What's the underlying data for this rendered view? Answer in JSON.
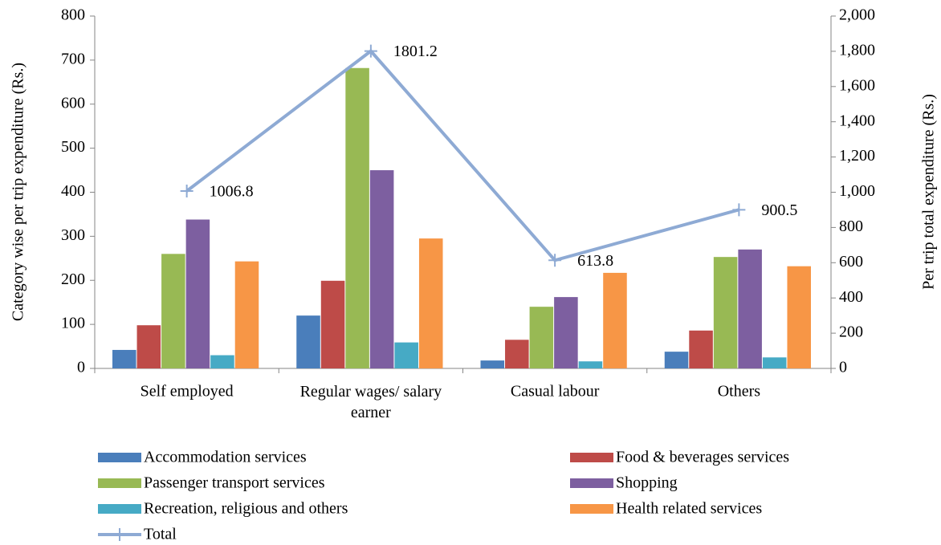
{
  "chart_data": {
    "type": "bar",
    "categories": [
      "Self employed",
      "Regular wages/ salary earner",
      "Casual labour",
      "Others"
    ],
    "ylabel": "Category wise per trip expenditure (Rs.)",
    "y2label": "Per trip total expenditure (Rs.)",
    "ylim": [
      0,
      800
    ],
    "yticks": [
      0,
      100,
      200,
      300,
      400,
      500,
      600,
      700,
      800
    ],
    "y2lim": [
      0,
      2000
    ],
    "y2ticks": [
      0,
      200,
      400,
      600,
      800,
      {
        "value": 1000,
        "label": "1,000"
      },
      {
        "value": 1200,
        "label": "1,200"
      },
      {
        "value": 1400,
        "label": "1,400"
      },
      {
        "value": 1600,
        "label": "1,600"
      },
      {
        "value": 1800,
        "label": "1,800"
      },
      {
        "value": 2000,
        "label": "2,000"
      }
    ],
    "series": [
      {
        "name": "Accommodation services",
        "color": "#4a7ebb",
        "values": [
          42,
          120,
          18,
          38
        ]
      },
      {
        "name": "Food & beverages services",
        "color": "#be4b48",
        "values": [
          98,
          199,
          65,
          86
        ]
      },
      {
        "name": "Passenger transport services",
        "color": "#98b954",
        "values": [
          260,
          682,
          140,
          253
        ]
      },
      {
        "name": "Shopping",
        "color": "#7d5fa0",
        "values": [
          338,
          450,
          162,
          270
        ]
      },
      {
        "name": "Recreation, religious and others",
        "color": "#46aac5",
        "values": [
          30,
          59,
          16,
          25
        ]
      },
      {
        "name": "Health related services",
        "color": "#f79646",
        "values": [
          243,
          295,
          217,
          232
        ]
      },
      {
        "name": "Total",
        "color": "#8eaad4",
        "type": "line",
        "axis": "y2",
        "values": [
          1006.8,
          1801.2,
          613.8,
          900.5
        ]
      }
    ]
  }
}
